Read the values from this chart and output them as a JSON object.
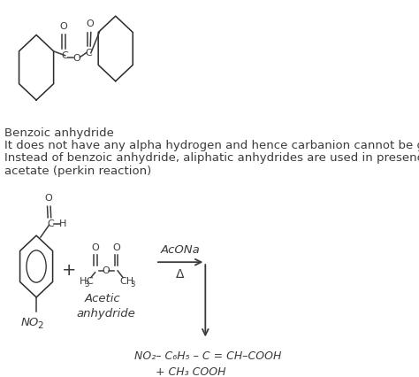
{
  "bg_color": "#ffffff",
  "text_color": "#3a3a3a",
  "line1": "Benzoic anhydride",
  "line2": "It does not have any alpha hydrogen and hence carbanion cannot be generated.",
  "line3": "Instead of benzoic anhydride, aliphatic anhydrides are used in presence of sodium",
  "line4": "acetate (perkin reaction)",
  "product1": "NO₂– C₆H₅ – C = CH–COOH",
  "product2": "+ CH₃ COOH",
  "acona": "AcONa",
  "delta": "Δ",
  "acetic_label1": "Acetic",
  "acetic_label2": "anhydride"
}
